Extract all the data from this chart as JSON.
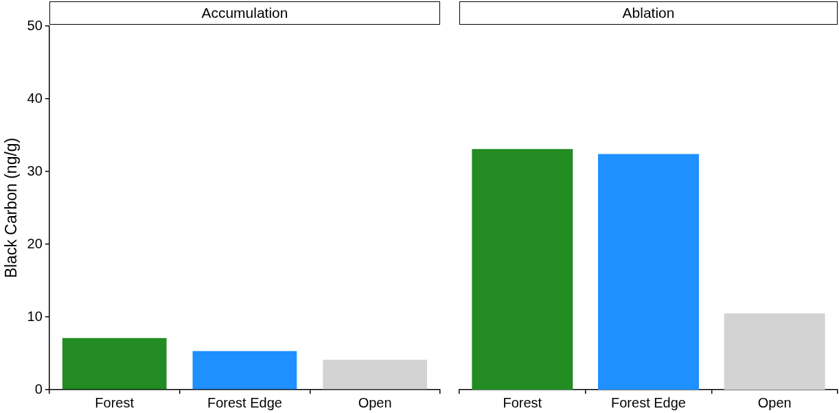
{
  "chart_data": [
    {
      "type": "bar",
      "title": "Accumulation",
      "ylabel": "Black Carbon (ng/g)",
      "categories": [
        "Forest",
        "Forest Edge",
        "Open"
      ],
      "values": [
        7.1,
        5.3,
        4.1
      ],
      "colors": [
        "#228b22",
        "#1e90ff",
        "#d3d3d3"
      ],
      "ylim": [
        0,
        50
      ],
      "yticks": [
        0,
        10,
        20,
        30,
        40,
        50
      ],
      "grid": false,
      "legend": false
    },
    {
      "type": "bar",
      "title": "Ablation",
      "categories": [
        "Forest",
        "Forest Edge",
        "Open"
      ],
      "values": [
        33.1,
        32.4,
        10.5
      ],
      "colors": [
        "#228b22",
        "#1e90ff",
        "#d3d3d3"
      ],
      "ylim": [
        0,
        50
      ],
      "yticks": [
        0,
        10,
        20,
        30,
        40,
        50
      ],
      "grid": false,
      "legend": false,
      "tick_labels": "x"
    }
  ]
}
